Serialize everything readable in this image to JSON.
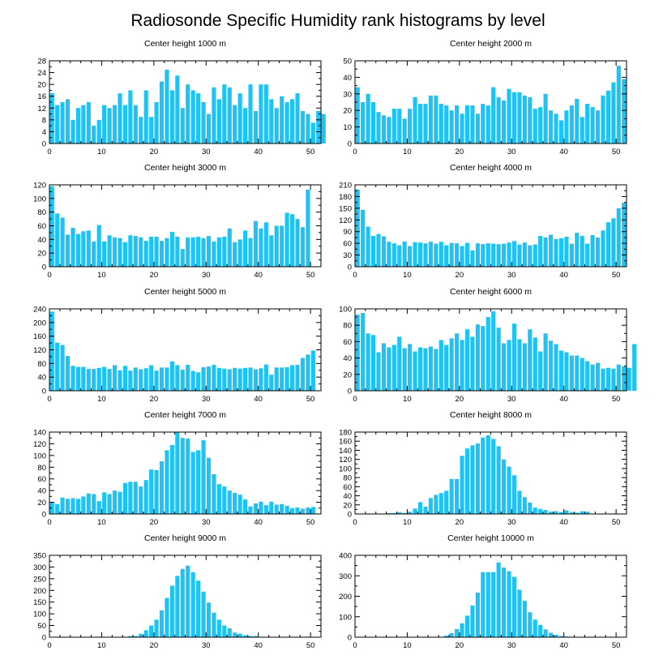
{
  "title": "Radiosonde Specific Humidity rank histograms by level",
  "bar_color": "#1EC3F6",
  "chart_data": [
    {
      "type": "bar",
      "title": "Center height 1000 m",
      "x_ticks": [
        0,
        10,
        20,
        30,
        40,
        50
      ],
      "y_ticks": [
        0,
        4,
        8,
        12,
        16,
        20,
        24,
        28
      ],
      "ylim": [
        0,
        28
      ],
      "values": [
        17,
        13,
        14,
        15,
        8,
        12,
        13,
        14,
        6,
        8,
        13,
        12,
        13,
        17,
        13,
        18,
        13,
        9,
        18,
        9,
        14,
        21,
        25,
        18,
        23,
        12,
        20,
        18,
        17,
        14,
        10,
        19,
        15,
        20,
        19,
        13,
        17,
        12,
        20,
        11,
        20,
        20,
        15,
        12,
        16,
        14,
        15,
        17,
        11,
        10,
        7,
        11,
        10
      ]
    },
    {
      "type": "bar",
      "title": "Center height 2000 m",
      "x_ticks": [
        0,
        10,
        20,
        30,
        40,
        50
      ],
      "y_ticks": [
        0,
        10,
        20,
        30,
        40,
        50
      ],
      "ylim": [
        0,
        50
      ],
      "values": [
        34,
        25,
        30,
        25,
        19,
        17,
        16,
        21,
        21,
        15,
        21,
        28,
        24,
        24,
        29,
        29,
        24,
        23,
        20,
        23,
        18,
        23,
        23,
        18,
        24,
        23,
        34,
        28,
        26,
        33,
        31,
        31,
        29,
        28,
        21,
        22,
        30,
        20,
        18,
        14,
        20,
        23,
        27,
        16,
        24,
        22,
        20,
        29,
        32,
        37,
        47,
        39
      ]
    },
    {
      "type": "bar",
      "title": "Center height 3000 m",
      "x_ticks": [
        0,
        10,
        20,
        30,
        40,
        50
      ],
      "y_ticks": [
        0,
        20,
        40,
        60,
        80,
        100,
        120
      ],
      "ylim": [
        0,
        120
      ],
      "values": [
        118,
        78,
        72,
        47,
        57,
        48,
        52,
        53,
        37,
        61,
        37,
        46,
        43,
        42,
        36,
        46,
        45,
        43,
        38,
        44,
        44,
        38,
        42,
        51,
        44,
        26,
        43,
        43,
        44,
        42,
        45,
        37,
        43,
        44,
        56,
        36,
        40,
        53,
        42,
        67,
        56,
        65,
        46,
        60,
        60,
        79,
        77,
        70,
        58,
        113
      ]
    },
    {
      "type": "bar",
      "title": "Center height 4000 m",
      "x_ticks": [
        0,
        10,
        20,
        30,
        40,
        50
      ],
      "y_ticks": [
        0,
        30,
        60,
        90,
        120,
        150,
        180,
        210
      ],
      "ylim": [
        0,
        210
      ],
      "values": [
        198,
        146,
        103,
        79,
        84,
        78,
        64,
        60,
        55,
        65,
        53,
        63,
        62,
        60,
        64,
        59,
        64,
        55,
        61,
        60,
        53,
        61,
        42,
        60,
        58,
        60,
        59,
        58,
        59,
        62,
        66,
        57,
        62,
        55,
        57,
        79,
        75,
        82,
        71,
        73,
        77,
        59,
        87,
        79,
        59,
        81,
        75,
        93,
        114,
        124,
        150,
        164
      ]
    },
    {
      "type": "bar",
      "title": "Center height 5000 m",
      "x_ticks": [
        0,
        10,
        20,
        30,
        40,
        50
      ],
      "y_ticks": [
        0,
        40,
        80,
        120,
        160,
        200,
        240
      ],
      "ylim": [
        0,
        240
      ],
      "values": [
        232,
        141,
        134,
        102,
        73,
        70,
        70,
        64,
        64,
        67,
        70,
        64,
        75,
        60,
        73,
        59,
        68,
        63,
        66,
        75,
        59,
        68,
        68,
        86,
        75,
        62,
        76,
        58,
        54,
        69,
        71,
        76,
        67,
        65,
        63,
        67,
        65,
        67,
        68,
        63,
        66,
        77,
        47,
        68,
        68,
        69,
        75,
        76,
        96,
        106,
        118
      ]
    },
    {
      "type": "bar",
      "title": "Center height 6000 m",
      "x_ticks": [
        0,
        10,
        20,
        30,
        40,
        50
      ],
      "y_ticks": [
        0,
        20,
        40,
        60,
        80,
        100
      ],
      "ylim": [
        0,
        100
      ],
      "values": [
        93,
        95,
        70,
        68,
        47,
        58,
        53,
        56,
        66,
        52,
        57,
        48,
        53,
        52,
        54,
        51,
        62,
        56,
        64,
        70,
        62,
        75,
        66,
        81,
        79,
        90,
        97,
        77,
        58,
        62,
        82,
        63,
        58,
        75,
        65,
        48,
        70,
        61,
        57,
        49,
        47,
        43,
        43,
        40,
        36,
        32,
        34,
        27,
        28,
        27,
        32,
        30,
        28,
        57
      ]
    },
    {
      "type": "bar",
      "title": "Center height 7000 m",
      "x_ticks": [
        0,
        10,
        20,
        30,
        40,
        50
      ],
      "y_ticks": [
        0,
        20,
        40,
        60,
        80,
        100,
        120,
        140
      ],
      "ylim": [
        0,
        140
      ],
      "values": [
        20,
        17,
        28,
        26,
        27,
        26,
        30,
        35,
        34,
        22,
        37,
        34,
        40,
        38,
        53,
        55,
        55,
        47,
        58,
        76,
        75,
        90,
        109,
        118,
        140,
        130,
        129,
        106,
        109,
        126,
        96,
        68,
        51,
        47,
        40,
        36,
        33,
        25,
        13,
        18,
        21,
        15,
        21,
        16,
        17,
        14,
        10,
        11,
        9,
        11,
        12
      ]
    },
    {
      "type": "bar",
      "title": "Center height 8000 m",
      "x_ticks": [
        0,
        10,
        20,
        30,
        40,
        50
      ],
      "y_ticks": [
        0,
        20,
        40,
        60,
        80,
        100,
        120,
        140,
        160,
        180
      ],
      "ylim": [
        0,
        180
      ],
      "values": [
        0,
        0,
        0,
        0,
        0,
        0,
        2,
        2,
        4,
        2,
        5,
        12,
        26,
        16,
        35,
        42,
        46,
        51,
        77,
        77,
        128,
        144,
        151,
        155,
        168,
        173,
        165,
        149,
        120,
        104,
        85,
        51,
        37,
        25,
        14,
        11,
        9,
        5,
        6,
        4,
        8,
        4,
        3,
        6,
        5,
        0,
        0,
        0,
        0,
        0,
        0,
        0
      ]
    },
    {
      "type": "bar",
      "title": "Center height 9000 m",
      "x_ticks": [
        0,
        10,
        20,
        30,
        40,
        50
      ],
      "y_ticks": [
        0,
        50,
        100,
        150,
        200,
        250,
        300,
        350
      ],
      "ylim": [
        0,
        350
      ],
      "values": [
        0,
        0,
        0,
        0,
        0,
        0,
        0,
        0,
        0,
        0,
        0,
        0,
        0,
        0,
        0,
        5,
        5,
        15,
        30,
        50,
        75,
        115,
        168,
        220,
        262,
        292,
        306,
        278,
        242,
        195,
        148,
        105,
        75,
        50,
        38,
        20,
        15,
        8,
        5,
        5,
        0,
        0,
        0,
        0,
        0,
        0,
        0,
        0,
        0,
        0,
        0,
        0
      ]
    },
    {
      "type": "bar",
      "title": "Center height 10000 m",
      "x_ticks": [
        0,
        10,
        20,
        30,
        40,
        50
      ],
      "y_ticks": [
        0,
        100,
        200,
        300,
        400
      ],
      "ylim": [
        0,
        400
      ],
      "values": [
        0,
        0,
        0,
        0,
        0,
        0,
        0,
        0,
        0,
        0,
        0,
        0,
        0,
        0,
        0,
        0,
        0,
        8,
        20,
        40,
        68,
        105,
        155,
        218,
        318,
        318,
        318,
        365,
        340,
        322,
        295,
        232,
        178,
        122,
        86,
        60,
        38,
        22,
        12,
        5,
        3,
        0,
        0,
        0,
        0,
        0,
        0,
        0,
        0,
        0,
        0,
        0,
        0
      ]
    }
  ]
}
